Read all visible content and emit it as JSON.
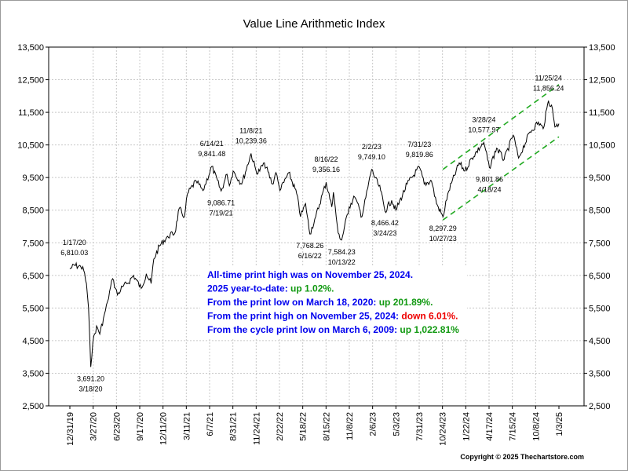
{
  "chart_data": {
    "type": "line",
    "title": "Value Line Arithmetic Index",
    "ylim": [
      2500,
      13500
    ],
    "y_ticks": [
      "2,500",
      "3,500",
      "4,500",
      "5,500",
      "6,500",
      "7,500",
      "8,500",
      "9,500",
      "10,500",
      "11,500",
      "12,500",
      "13,500"
    ],
    "x_tick_labels": [
      "12/31/19",
      "3/27/20",
      "6/23/20",
      "9/17/20",
      "12/11/20",
      "3/11/21",
      "6/7/21",
      "8/31/21",
      "11/24/21",
      "2/22/22",
      "5/18/22",
      "8/15/22",
      "11/8/22",
      "2/6/23",
      "5/3/23",
      "7/31/23",
      "10/24/23",
      "1/22/24",
      "4/17/24",
      "7/15/24",
      "10/8/24",
      "1/3/25"
    ],
    "xlim": [
      "2019-12-31",
      "2025-01-03"
    ],
    "grid": true,
    "series": [
      {
        "color": "#000000",
        "points": [
          [
            "2019-12-31",
            6700
          ],
          [
            "2020-01-17",
            6810
          ],
          [
            "2020-02-10",
            6760
          ],
          [
            "2020-02-21",
            6650
          ],
          [
            "2020-03-02",
            6250
          ],
          [
            "2020-03-10",
            5500
          ],
          [
            "2020-03-18",
            3691
          ],
          [
            "2020-03-26",
            4450
          ],
          [
            "2020-04-09",
            4950
          ],
          [
            "2020-04-21",
            4700
          ],
          [
            "2020-05-08",
            5300
          ],
          [
            "2020-05-20",
            5700
          ],
          [
            "2020-06-08",
            6400
          ],
          [
            "2020-06-26",
            5900
          ],
          [
            "2020-07-15",
            6150
          ],
          [
            "2020-08-03",
            6250
          ],
          [
            "2020-08-25",
            6500
          ],
          [
            "2020-09-23",
            6100
          ],
          [
            "2020-10-12",
            6550
          ],
          [
            "2020-10-30",
            6250
          ],
          [
            "2020-11-09",
            7000
          ],
          [
            "2020-11-30",
            7400
          ],
          [
            "2020-12-31",
            7700
          ],
          [
            "2021-01-27",
            7800
          ],
          [
            "2021-02-12",
            8550
          ],
          [
            "2021-03-04",
            8300
          ],
          [
            "2021-03-15",
            9000
          ],
          [
            "2021-04-16",
            9400
          ],
          [
            "2021-05-12",
            9100
          ],
          [
            "2021-06-14",
            9841
          ],
          [
            "2021-07-19",
            9087
          ],
          [
            "2021-08-10",
            9600
          ],
          [
            "2021-08-19",
            9250
          ],
          [
            "2021-09-02",
            9700
          ],
          [
            "2021-10-04",
            9300
          ],
          [
            "2021-11-08",
            10239
          ],
          [
            "2021-11-30",
            9600
          ],
          [
            "2021-12-28",
            9950
          ],
          [
            "2022-01-27",
            9300
          ],
          [
            "2022-02-09",
            9650
          ],
          [
            "2022-02-24",
            9100
          ],
          [
            "2022-03-29",
            9650
          ],
          [
            "2022-04-28",
            9000
          ],
          [
            "2022-05-12",
            8300
          ],
          [
            "2022-05-31",
            8700
          ],
          [
            "2022-06-16",
            7768
          ],
          [
            "2022-07-08",
            8300
          ],
          [
            "2022-08-16",
            9356
          ],
          [
            "2022-09-06",
            8600
          ],
          [
            "2022-09-12",
            9050
          ],
          [
            "2022-09-30",
            7800
          ],
          [
            "2022-10-13",
            7584
          ],
          [
            "2022-11-10",
            8600
          ],
          [
            "2022-12-01",
            8900
          ],
          [
            "2022-12-28",
            8300
          ],
          [
            "2023-02-02",
            9749
          ],
          [
            "2023-03-08",
            9100
          ],
          [
            "2023-03-24",
            8466
          ],
          [
            "2023-04-18",
            8800
          ],
          [
            "2023-05-04",
            8500
          ],
          [
            "2023-06-15",
            9300
          ],
          [
            "2023-07-31",
            9820
          ],
          [
            "2023-08-18",
            9300
          ],
          [
            "2023-09-14",
            9400
          ],
          [
            "2023-10-03",
            8700
          ],
          [
            "2023-10-27",
            8297
          ],
          [
            "2023-11-14",
            9000
          ],
          [
            "2023-12-27",
            9950
          ],
          [
            "2024-01-17",
            9700
          ],
          [
            "2024-02-12",
            10100
          ],
          [
            "2024-03-28",
            10578
          ],
          [
            "2024-04-18",
            9802
          ],
          [
            "2024-05-15",
            10400
          ],
          [
            "2024-06-12",
            10050
          ],
          [
            "2024-07-16",
            10800
          ],
          [
            "2024-08-05",
            10100
          ],
          [
            "2024-09-17",
            10900
          ],
          [
            "2024-10-18",
            11200
          ],
          [
            "2024-11-05",
            11000
          ],
          [
            "2024-11-25",
            11856
          ],
          [
            "2024-12-10",
            11600
          ],
          [
            "2024-12-19",
            11050
          ],
          [
            "2025-01-03",
            11150
          ]
        ]
      }
    ],
    "annotations": [
      {
        "date": "1/17/20",
        "value": "6,810.03",
        "x": "2020-01-17",
        "y": 6810,
        "pos": "above"
      },
      {
        "date": "3/18/20",
        "value": "3,691.20",
        "x": "2020-03-18",
        "y": 3691,
        "pos": "below"
      },
      {
        "date": "6/14/21",
        "value": "9,841.48",
        "x": "2021-06-14",
        "y": 9841,
        "pos": "above"
      },
      {
        "date": "7/19/21",
        "value": "9,086.71",
        "x": "2021-07-19",
        "y": 9087,
        "pos": "below"
      },
      {
        "date": "11/8/21",
        "value": "10,239.36",
        "x": "2021-11-08",
        "y": 10239,
        "pos": "above"
      },
      {
        "date": "6/16/22",
        "value": "7,768.26",
        "x": "2022-06-16",
        "y": 7768,
        "pos": "below"
      },
      {
        "date": "8/16/22",
        "value": "9,356.16",
        "x": "2022-08-16",
        "y": 9356,
        "pos": "above"
      },
      {
        "date": "10/13/22",
        "value": "7,584.23",
        "x": "2022-10-13",
        "y": 7584,
        "pos": "below"
      },
      {
        "date": "2/2/23",
        "value": "9,749.10",
        "x": "2023-02-02",
        "y": 9749,
        "pos": "above"
      },
      {
        "date": "3/24/23",
        "value": "8,466.42",
        "x": "2023-03-24",
        "y": 8466,
        "pos": "below"
      },
      {
        "date": "7/31/23",
        "value": "9,819.86",
        "x": "2023-07-31",
        "y": 9820,
        "pos": "above"
      },
      {
        "date": "10/27/23",
        "value": "8,297.29",
        "x": "2023-10-27",
        "y": 8297,
        "pos": "below"
      },
      {
        "date": "3/28/24",
        "value": "10,577.97",
        "x": "2024-03-28",
        "y": 10578,
        "pos": "above"
      },
      {
        "date": "4/18/24",
        "value": "9,801.86",
        "x": "2024-04-18",
        "y": 9802,
        "pos": "below"
      },
      {
        "date": "11/25/24",
        "value": "11,856.24",
        "x": "2024-11-25",
        "y": 11856,
        "pos": "above"
      }
    ],
    "channel": {
      "color": "#22aa22",
      "upper": [
        [
          "2023-10-27",
          9750
        ],
        [
          "2025-01-03",
          12350
        ]
      ],
      "lower": [
        [
          "2023-10-27",
          8200
        ],
        [
          "2025-01-03",
          10750
        ]
      ]
    }
  },
  "stats": [
    [
      {
        "text": "All-time print high was on November 25, 2024.",
        "color": "#0000ee"
      }
    ],
    [
      {
        "text": "2025 year-to-date: ",
        "color": "#0000ee"
      },
      {
        "text": "up 1.02%.",
        "color": "#119911"
      }
    ],
    [
      {
        "text": "From the print low on March 18, 2020:  ",
        "color": "#0000ee"
      },
      {
        "text": "up 201.89%.",
        "color": "#119911"
      }
    ],
    [
      {
        "text": "From the print high on November 25, 2024:  ",
        "color": "#0000ee"
      },
      {
        "text": "down 6.01%.",
        "color": "#ee0000"
      }
    ],
    [
      {
        "text": "From the cycle print low on March 6, 2009:  ",
        "color": "#0000ee"
      },
      {
        "text": "up 1,022.81%",
        "color": "#119911"
      }
    ]
  ],
  "copyright": "Copyright © 2025 Thechartstore.com"
}
